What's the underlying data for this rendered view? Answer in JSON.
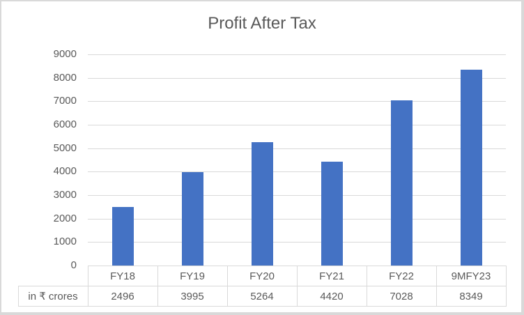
{
  "chart_data": {
    "type": "bar",
    "title": "Profit After Tax",
    "categories": [
      "FY18",
      "FY19",
      "FY20",
      "FY21",
      "FY22",
      "9MFY23"
    ],
    "series": [
      {
        "name": "in ₹ crores",
        "values": [
          2496,
          3995,
          5264,
          4420,
          7028,
          8349
        ],
        "color": "#4472c4"
      }
    ],
    "xlabel": "",
    "ylabel": "",
    "ylim": [
      0,
      9000
    ],
    "yticks": [
      "0",
      "1000",
      "2000",
      "3000",
      "4000",
      "5000",
      "6000",
      "7000",
      "8000",
      "9000"
    ],
    "grid": true,
    "legend": "data table row label",
    "data_table": true
  },
  "table": {
    "row_label": "in ₹ crores",
    "headers": [
      "FY18",
      "FY19",
      "FY20",
      "FY21",
      "FY22",
      "9MFY23"
    ],
    "values": [
      "2496",
      "3995",
      "5264",
      "4420",
      "7028",
      "8349"
    ]
  }
}
